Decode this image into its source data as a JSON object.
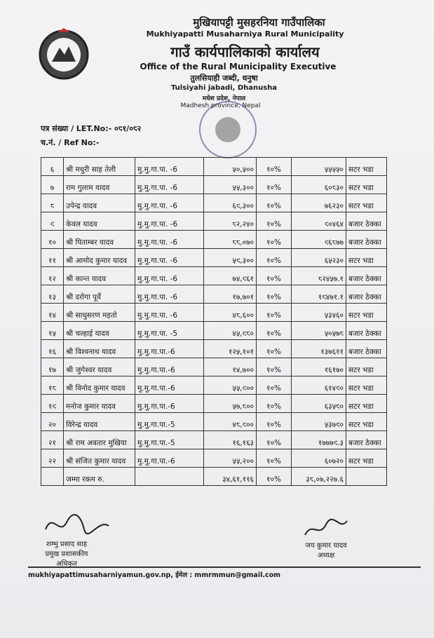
{
  "header": {
    "name_ne": "मुखियापट्टी मुसहरनिया गाउँपालिका",
    "name_en": "Mukhiyapatti Musaharniya Rural Municipality",
    "office_ne": "गाउँ कार्यपालिकाको कार्यालय",
    "office_en": "Office of the Rural Municipality Executive",
    "address_ne": "तुलसियाही जब्दी, धनुषा",
    "address_en": "Tulsiyahi jabadi, Dhanusha",
    "province_ne": "मधेश प्रदेश, नेपाल",
    "province_en": "Madhesh province, Nepal"
  },
  "letter": {
    "number": "पत्र संख्या / LET.No:- ०८१/०८२",
    "ref": "च.नं. / Ref No:-"
  },
  "table": {
    "rows": [
      [
        "६",
        "श्री मधुरी साह तेली",
        "मु.मु.गा.पा. -6",
        "५०,५००",
        "१०%",
        "५५५५०",
        "सटर भडा"
      ],
      [
        "७",
        "राम गुलाम यादव",
        "मु.मु.गा.पा. -6",
        "५५,३००",
        "१०%",
        "६०८३०",
        "सटर भडा"
      ],
      [
        "८",
        "उपेन्द्र यादव",
        "मु.मु.गा.पा. -6",
        "६९,३००",
        "१०%",
        "७६२३०",
        "सटर भडा"
      ],
      [
        "९",
        "केवल यादव",
        "मु.मु.गा.पा. -6",
        "८२,२४०",
        "१०%",
        "९०४६४",
        "बजार ठेक्का"
      ],
      [
        "१०",
        "श्री पिताम्बर यादव",
        "मु.मु.गा.पा. -6",
        "८८,०७०",
        "१०%",
        "९६८७७",
        "बजार ठेक्का"
      ],
      [
        "११",
        "श्री आमोद कुमार यादव",
        "मु.मु.गा.पा. -6",
        "५९,३००",
        "१०%",
        "६५२३०",
        "सटर भडा"
      ],
      [
        "१२",
        "श्री कान्त यादव",
        "मु.मु.गा.पा. -6",
        "७४,९६१",
        "१०%",
        "८२४५७.१",
        "बजार ठेक्का"
      ],
      [
        "१३",
        "श्री दरोगा पूर्वे",
        "मु.मु.गा.पा. -6",
        "१७,७०१",
        "१०%",
        "१९४७१.१",
        "बजार ठेक्का"
      ],
      [
        "१४",
        "श्री साधुसरण महतो",
        "मु.मु.गा.पा. -6",
        "४८,६००",
        "१०%",
        "५३४६०",
        "सटर भडा"
      ],
      [
        "१५",
        "श्री चल्हाई यादव",
        "मु.मु.गा.पा. -5",
        "४५,९८०",
        "१०%",
        "५०५७८",
        "बजार ठेक्का"
      ],
      [
        "१६",
        "श्री विश्वनाथ यादव",
        "मु.मु.गा.पा.-6",
        "१२५,१०१",
        "१०%",
        "१३७६११",
        "बजार ठेक्का"
      ],
      [
        "१७",
        "श्री जुगेश्वर यादव",
        "मु.मु.गा.पा.-6",
        "१४,७००",
        "१०%",
        "१६१७०",
        "सटर भडा"
      ],
      [
        "१८",
        "श्री विनोद कुमार यादव",
        "मु.मु.गा.पा.-6",
        "५५,९००",
        "१०%",
        "६१४९०",
        "सटर भडा"
      ],
      [
        "१९",
        "मनोज कुमार यादव",
        "मु.मु.गा.पा.-6",
        "५७,८००",
        "१०%",
        "६३५८०",
        "सटर भडा"
      ],
      [
        "२०",
        "विरेन्द्र यादव",
        "मु.मु.गा.पा.-5",
        "४८,९००",
        "१०%",
        "५३७९०",
        "सटर भडा"
      ],
      [
        "२१",
        "श्री राम अवतार मुखिया",
        "मु.मु.गा.पा.-5",
        "१६,१६३",
        "१०%",
        "१७७७९.३",
        "बजार ठेक्का"
      ],
      [
        "२२",
        "श्री संजित कुमार यादव",
        "मु.मु.गा.पा.-6",
        "५५,२००",
        "१०%",
        "६०७२०",
        "सटर भडा"
      ]
    ],
    "total": {
      "label": "जम्मा रकम रु.",
      "amount": "३४,६१,११६",
      "percent": "१०%",
      "grand_total": "३८,०७,२२७.६"
    }
  },
  "signatures": [
    {
      "name": "शम्भु प्रसाद साह",
      "title": "प्रमुख प्रशासकीय अधिकृत"
    },
    {
      "name": "जय कुमार यादव",
      "title": "अध्यक्ष"
    }
  ],
  "footer": {
    "contact": "mukhiyapattimusaharniyamun.gov.np, ईमेल : mmrmmun@gmail.com"
  }
}
